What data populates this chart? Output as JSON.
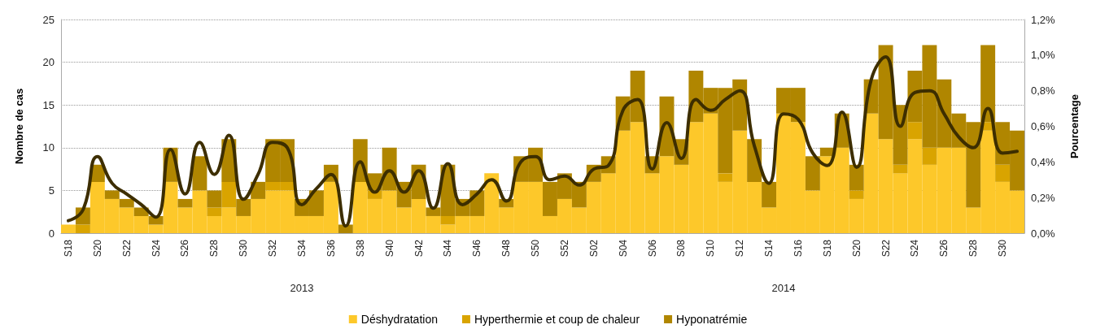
{
  "chart_data": {
    "type": "bar",
    "stacked": true,
    "ylabel": "Nombre de cas",
    "y2label": "Pourcentage",
    "categories": [
      "S18",
      null,
      "S20",
      null,
      "S22",
      null,
      "S24",
      null,
      "S26",
      null,
      "S28",
      null,
      "S30",
      null,
      "S32",
      null,
      "S34",
      null,
      "S36",
      null,
      "S38",
      null,
      "S40",
      null,
      "S42",
      null,
      "S44",
      null,
      "S46",
      null,
      "S48",
      null,
      "S50",
      null,
      "S52",
      null,
      "S02",
      null,
      "S04",
      null,
      "S06",
      null,
      "S08",
      null,
      "S10",
      null,
      "S12",
      null,
      "S14",
      null,
      "S16",
      null,
      "S18",
      null,
      "S20",
      null,
      "S22",
      null,
      "S24",
      null,
      "S26",
      null,
      "S28",
      null,
      "S30",
      null
    ],
    "series": [
      {
        "name": "Déshydratation",
        "color": "#fdc82a",
        "values": [
          1,
          0,
          6,
          4,
          3,
          2,
          1,
          6,
          3,
          5,
          2,
          3,
          2,
          4,
          5,
          5,
          2,
          2,
          6,
          0,
          6,
          4,
          5,
          3,
          4,
          2,
          1,
          2,
          2,
          7,
          3,
          6,
          6,
          2,
          4,
          3,
          6,
          7,
          12,
          13,
          7,
          9,
          8,
          13,
          14,
          6,
          12,
          6,
          3,
          14,
          13,
          5,
          9,
          10,
          4,
          14,
          11,
          7,
          11,
          8,
          10,
          10,
          3,
          12,
          6,
          5
        ]
      },
      {
        "name": "Hyperthermie et coup de chaleur",
        "color": "#d9a400",
        "values": [
          0,
          1,
          0,
          0,
          0,
          0,
          0,
          0,
          0,
          0,
          1,
          3,
          0,
          0,
          1,
          1,
          0,
          0,
          0,
          0,
          0,
          1,
          0,
          0,
          0,
          0,
          1,
          0,
          0,
          0,
          0,
          0,
          0,
          0,
          0,
          0,
          0,
          0,
          0,
          0,
          0,
          0,
          0,
          0,
          0,
          1,
          0,
          0,
          0,
          0,
          0,
          0,
          0,
          0,
          1,
          0,
          0,
          1,
          2,
          2,
          0,
          0,
          0,
          1,
          2,
          0
        ]
      },
      {
        "name": "Hyponatrémie",
        "color": "#b08600",
        "values": [
          0,
          2,
          2,
          1,
          1,
          1,
          1,
          4,
          1,
          4,
          2,
          5,
          2,
          2,
          5,
          5,
          2,
          3,
          2,
          1,
          5,
          2,
          5,
          3,
          4,
          1,
          6,
          2,
          3,
          0,
          1,
          3,
          4,
          4,
          3,
          3,
          2,
          2,
          4,
          6,
          2,
          7,
          3,
          6,
          3,
          10,
          6,
          5,
          3,
          3,
          4,
          4,
          1,
          4,
          3,
          4,
          11,
          7,
          6,
          12,
          8,
          4,
          10,
          9,
          5,
          7
        ]
      },
      {
        "type": "line",
        "axis": "y2",
        "color": "#3d2e00",
        "values": [
          0.07,
          0.13,
          0.43,
          0.28,
          0.22,
          0.16,
          0.09,
          0.47,
          0.22,
          0.51,
          0.33,
          0.55,
          0.19,
          0.33,
          0.51,
          0.48,
          0.16,
          0.25,
          0.33,
          0.04,
          0.4,
          0.23,
          0.35,
          0.23,
          0.35,
          0.14,
          0.39,
          0.16,
          0.22,
          0.3,
          0.18,
          0.4,
          0.43,
          0.3,
          0.32,
          0.27,
          0.36,
          0.38,
          0.69,
          0.75,
          0.36,
          0.62,
          0.42,
          0.75,
          0.69,
          0.75,
          0.8,
          0.49,
          0.28,
          0.67,
          0.64,
          0.45,
          0.38,
          0.68,
          0.37,
          0.86,
          0.99,
          0.6,
          0.79,
          0.8,
          0.67,
          0.54,
          0.48,
          0.7,
          0.45,
          0.46
        ]
      }
    ],
    "ylim": [
      0,
      25
    ],
    "yticks": [
      0,
      5,
      10,
      15,
      20,
      25
    ],
    "y2lim": [
      0,
      1.2
    ],
    "y2ticks": [
      {
        "value": 0,
        "label": "0,0%"
      },
      {
        "value": 0.2,
        "label": "0,2%"
      },
      {
        "value": 0.4,
        "label": "0,4%"
      },
      {
        "value": 0.6,
        "label": "0,6%"
      },
      {
        "value": 0.8,
        "label": "0,8%"
      },
      {
        "value": 1.0,
        "label": "1,0%"
      },
      {
        "value": 1.2,
        "label": "1,2%"
      }
    ],
    "annotations": [
      "2013",
      "2014"
    ],
    "grid": "y",
    "legend": "bottom",
    "marker": "none",
    "line_style": "solid"
  }
}
